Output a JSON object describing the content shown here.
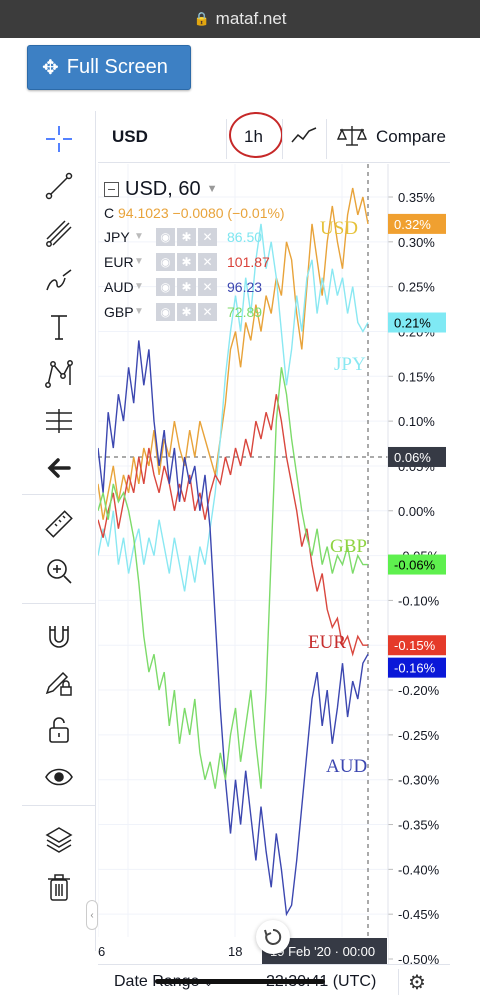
{
  "browser": {
    "domain": "mataf.net"
  },
  "fullscreen_button": {
    "label": "Full Screen"
  },
  "topbar": {
    "symbol": "USD",
    "interval": "1h",
    "compare": "Compare"
  },
  "legend": {
    "main_symbol": "USD, 60",
    "ohlc_prefix": "C",
    "close": "94.1023",
    "change": "−0.0080 (−0.01%)",
    "rows": [
      {
        "name": "JPY",
        "value": "86.50",
        "color": "#7fe6f0"
      },
      {
        "name": "EUR",
        "value": "101.87",
        "color": "#d9423a"
      },
      {
        "name": "AUD",
        "value": "96.23",
        "color": "#3c47b0"
      },
      {
        "name": "GBP",
        "value": "72.89",
        "color": "#7ddb6a"
      }
    ]
  },
  "chart_data": {
    "type": "line",
    "y_axis_ticks": [
      "0.35%",
      "0.30%",
      "0.25%",
      "0.20%",
      "0.15%",
      "0.10%",
      "0.05%",
      "0.00%",
      "-0.05%",
      "-0.10%",
      "-0.15%",
      "-0.20%",
      "-0.25%",
      "-0.30%",
      "-0.35%",
      "-0.40%",
      "-0.45%",
      "-0.50%"
    ],
    "ylim": [
      -0.5,
      0.38
    ],
    "x_ticks": [
      "6",
      "18"
    ],
    "crosshair_label": "19 Feb '20 · 00:00",
    "crosshair_price": "0.06%",
    "series": [
      {
        "name": "USD",
        "color": "#e8a33a",
        "label_color": "#e6c23a",
        "badge": "0.32%",
        "values": [
          0.03,
          -0.01,
          0.02,
          0.05,
          0.01,
          0.04,
          0.02,
          0.06,
          0.03,
          0.07,
          0.05,
          0.09,
          0.04,
          0.08,
          0.06,
          0.1,
          0.07,
          0.05,
          0.09,
          0.06,
          0.1,
          0.08,
          0.06,
          0.04,
          0.08,
          0.12,
          0.18,
          0.2,
          0.16,
          0.21,
          0.19,
          0.23,
          0.2,
          0.24,
          0.22,
          0.26,
          0.24,
          0.3,
          0.28,
          0.22,
          0.18,
          0.25,
          0.32,
          0.28,
          0.24,
          0.3,
          0.34,
          0.3,
          0.27,
          0.33,
          0.36,
          0.33,
          0.35,
          0.32
        ]
      },
      {
        "name": "JPY",
        "color": "#8ae8f2",
        "label_color": "#8ae8f2",
        "badge": "0.21%",
        "values": [
          -0.05,
          -0.02,
          -0.04,
          0.0,
          -0.06,
          -0.03,
          -0.07,
          -0.04,
          -0.02,
          -0.06,
          -0.03,
          -0.05,
          -0.01,
          -0.04,
          -0.07,
          -0.03,
          -0.06,
          -0.09,
          -0.05,
          -0.08,
          -0.04,
          -0.06,
          -0.02,
          0.02,
          0.08,
          0.15,
          0.2,
          0.24,
          0.2,
          0.26,
          0.22,
          0.28,
          0.32,
          0.27,
          0.3,
          0.26,
          0.2,
          0.14,
          0.18,
          0.24,
          0.2,
          0.26,
          0.28,
          0.22,
          0.26,
          0.23,
          0.27,
          0.24,
          0.26,
          0.22,
          0.25,
          0.21,
          0.2,
          0.21
        ]
      },
      {
        "name": "EUR",
        "color": "#d9473e",
        "label_color": "#c62d2d",
        "badge": "-0.15%",
        "values": [
          -0.01,
          -0.03,
          0.0,
          0.02,
          -0.02,
          0.01,
          0.04,
          0.02,
          0.06,
          0.03,
          0.07,
          0.04,
          0.02,
          0.05,
          0.03,
          0.0,
          0.03,
          0.01,
          0.04,
          0.0,
          0.02,
          -0.01,
          0.02,
          0.04,
          0.03,
          0.06,
          0.04,
          0.07,
          0.05,
          0.08,
          0.06,
          0.1,
          0.08,
          0.11,
          0.09,
          0.13,
          0.1,
          0.06,
          0.03,
          0.0,
          -0.04,
          -0.02,
          -0.06,
          -0.09,
          -0.07,
          -0.11,
          -0.13,
          -0.12,
          -0.15,
          -0.14,
          -0.16,
          -0.14,
          -0.15,
          -0.15
        ]
      },
      {
        "name": "AUD",
        "color": "#3c47b0",
        "label_color": "#3c47b0",
        "badge": "-0.16%",
        "values": [
          0.07,
          0.02,
          0.11,
          0.07,
          0.13,
          0.1,
          0.16,
          0.12,
          0.19,
          0.14,
          0.18,
          0.1,
          0.05,
          0.09,
          0.03,
          0.07,
          0.01,
          0.06,
          0.03,
          0.05,
          0.0,
          0.04,
          -0.02,
          -0.12,
          -0.22,
          -0.3,
          -0.36,
          -0.3,
          -0.35,
          -0.29,
          -0.34,
          -0.39,
          -0.33,
          -0.38,
          -0.42,
          -0.36,
          -0.4,
          -0.45,
          -0.44,
          -0.39,
          -0.33,
          -0.27,
          -0.21,
          -0.18,
          -0.24,
          -0.2,
          -0.26,
          -0.22,
          -0.17,
          -0.23,
          -0.19,
          -0.21,
          -0.17,
          -0.16
        ]
      },
      {
        "name": "GBP",
        "color": "#7ddb6a",
        "label_color": "#8fd442",
        "badge": "-0.06%",
        "values": [
          0.0,
          0.02,
          -0.01,
          0.03,
          0.01,
          0.02,
          0.0,
          -0.03,
          -0.08,
          -0.14,
          -0.18,
          -0.16,
          -0.2,
          -0.18,
          -0.24,
          -0.2,
          -0.26,
          -0.22,
          -0.25,
          -0.21,
          -0.27,
          -0.3,
          -0.28,
          -0.31,
          -0.27,
          -0.3,
          -0.25,
          -0.22,
          -0.28,
          -0.24,
          -0.2,
          -0.26,
          -0.31,
          -0.2,
          -0.05,
          0.1,
          0.16,
          0.13,
          0.08,
          0.04,
          0.0,
          -0.03,
          -0.05,
          -0.02,
          -0.06,
          -0.04,
          -0.07,
          -0.05,
          -0.06,
          -0.04,
          -0.07,
          -0.05,
          -0.06,
          -0.06
        ]
      }
    ]
  },
  "bottombar": {
    "date_range": "Date Range",
    "time": "22:30:41 (UTC)"
  },
  "colors": {
    "accent": "#3d80c4",
    "highlight_circle": "#c62828"
  }
}
